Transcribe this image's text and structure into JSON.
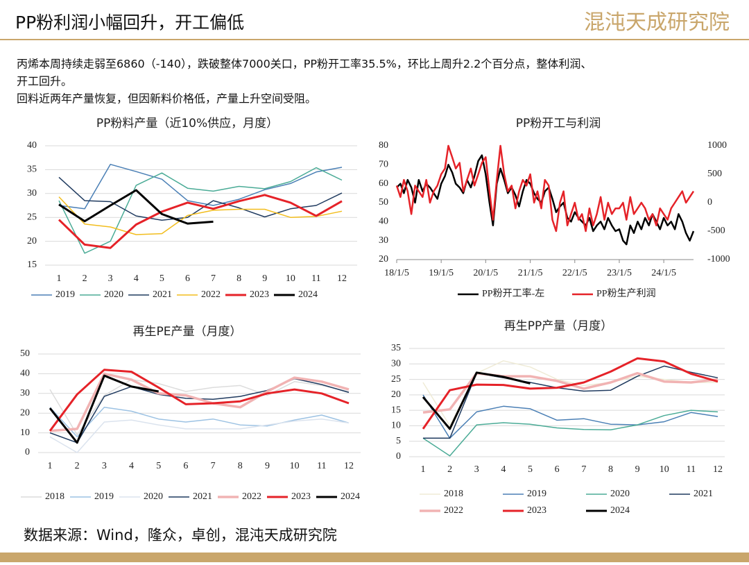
{
  "header": {
    "title": "PP粉利润小幅回升，开工偏低",
    "logo": "混沌天成研究院"
  },
  "text": {
    "lines": [
      "丙烯本周持续走弱至6860（-140），跌破整体7000关口，PP粉开工率35.5%，环比上周升2.2个百分点，整体利润、",
      "开工回升。",
      "回料近两年产量恢复，但因新料价格低，产量上升空间受阻。"
    ]
  },
  "source": "数据来源：Wind，隆众，卓创，混沌天成研究院",
  "chart_data": [
    {
      "type": "line",
      "title": "PP粉料产量（近10%供应，月度）",
      "categories": [
        "1",
        "2",
        "3",
        "4",
        "5",
        "6",
        "7",
        "8",
        "9",
        "10",
        "11",
        "12"
      ],
      "ylim": [
        15,
        40
      ],
      "yticks": [
        15,
        20,
        25,
        30,
        35,
        40
      ],
      "grid": true,
      "legend": "bottom",
      "series": [
        {
          "name": "2019",
          "color": "#4a7fb5",
          "width": 1.5,
          "values": [
            27.5,
            26.8,
            36.1,
            34.6,
            33.0,
            28.5,
            27.5,
            28.8,
            30.8,
            32.1,
            34.5,
            35.5
          ]
        },
        {
          "name": "2020",
          "color": "#4aab96",
          "width": 1.5,
          "values": [
            28.5,
            17.5,
            20.0,
            31.7,
            34.3,
            31.1,
            30.5,
            31.5,
            31.0,
            32.5,
            35.4,
            32.8
          ]
        },
        {
          "name": "2021",
          "color": "#1f3a5f",
          "width": 1.5,
          "values": [
            33.4,
            28.5,
            28.3,
            25.3,
            24.4,
            25.0,
            28.5,
            27.0,
            25.1,
            26.8,
            27.5,
            30.1
          ]
        },
        {
          "name": "2022",
          "color": "#f2bd1d",
          "width": 1.5,
          "values": [
            29.3,
            23.6,
            23.0,
            21.4,
            21.6,
            25.4,
            26.5,
            26.7,
            26.7,
            25.0,
            25.2,
            26.3
          ]
        },
        {
          "name": "2023",
          "color": "#e52228",
          "width": 3,
          "values": [
            24.5,
            19.3,
            18.6,
            23.5,
            26.2,
            28.1,
            26.8,
            28.4,
            29.7,
            28.1,
            25.3,
            28.4
          ]
        },
        {
          "name": "2024",
          "color": "#000000",
          "width": 3,
          "values": [
            27.7,
            24.2,
            27.5,
            30.7,
            25.7,
            23.7,
            24.1,
            null,
            null,
            null,
            null,
            null
          ]
        }
      ]
    },
    {
      "type": "dateline",
      "title": "PP粉开工与利润",
      "x": [
        "18/1/5",
        "18/2/5",
        "18/3/5",
        "18/4/5",
        "18/5/5",
        "18/6/5",
        "18/7/5",
        "18/8/5",
        "18/9/5",
        "18/10/5",
        "18/11/5",
        "18/12/5",
        "19/1/5",
        "19/2/5",
        "19/3/5",
        "19/4/5",
        "19/5/5",
        "19/6/5",
        "19/7/5",
        "19/8/5",
        "19/9/5",
        "19/10/5",
        "19/11/5",
        "19/12/5",
        "20/1/5",
        "20/2/5",
        "20/3/5",
        "20/4/5",
        "20/5/5",
        "20/6/5",
        "20/7/5",
        "20/8/5",
        "20/9/5",
        "20/10/5",
        "20/11/5",
        "20/12/5",
        "21/1/5",
        "21/2/5",
        "21/3/5",
        "21/4/5",
        "21/5/5",
        "21/6/5",
        "21/7/5",
        "21/8/5",
        "21/9/5",
        "21/10/5",
        "21/11/5",
        "21/12/5",
        "22/1/5",
        "22/2/5",
        "22/3/5",
        "22/4/5",
        "22/5/5",
        "22/6/5",
        "22/7/5",
        "22/8/5",
        "22/9/5",
        "22/10/5",
        "22/11/5",
        "22/12/5",
        "23/1/5",
        "23/2/5",
        "23/3/5",
        "23/4/5",
        "23/5/5",
        "23/6/5",
        "23/7/5",
        "23/8/5",
        "23/9/5",
        "23/10/5",
        "23/11/5",
        "23/12/5",
        "24/1/5",
        "24/2/5",
        "24/3/5",
        "24/4/5",
        "24/5/5",
        "24/6/5",
        "24/7/5",
        "24/8/5",
        "24/9/5"
      ],
      "xlim": [
        "18/1/5",
        "24/9/5"
      ],
      "xticks": [
        "18/1/5",
        "19/1/5",
        "20/1/5",
        "21/1/5",
        "22/1/5",
        "23/1/5",
        "24/1/5"
      ],
      "ylim": [
        20,
        80
      ],
      "yticks": [
        20,
        30,
        40,
        50,
        60,
        70,
        80
      ],
      "y2lim": [
        -1000,
        1000
      ],
      "y2ticks": [
        -1000,
        -500,
        0,
        500,
        1000
      ],
      "grid": false,
      "legend": "bottom",
      "series": [
        {
          "name": "PP粉开工率-左",
          "color": "#000000",
          "width": 2.5,
          "values": [
            58,
            60,
            55,
            62,
            58,
            50,
            62,
            56,
            60,
            58,
            55,
            52,
            60,
            64,
            70,
            66,
            60,
            58,
            55,
            62,
            58,
            64,
            72,
            75,
            65,
            50,
            38,
            60,
            68,
            62,
            55,
            58,
            54,
            48,
            56,
            62,
            60,
            55,
            52,
            50,
            56,
            58,
            52,
            45,
            48,
            50,
            42,
            40,
            45,
            42,
            40,
            38,
            42,
            35,
            38,
            40,
            36,
            42,
            38,
            35,
            36,
            30,
            28,
            38,
            34,
            40,
            36,
            42,
            38,
            44,
            40,
            36,
            42,
            38,
            40,
            36,
            44,
            40,
            34,
            30,
            35
          ]
        },
        {
          "name": "PP粉生产利润",
          "color": "#e52228",
          "width": 2.5,
          "axis": "y2",
          "values": [
            300,
            100,
            400,
            200,
            -200,
            300,
            200,
            100,
            400,
            0,
            200,
            300,
            500,
            600,
            1000,
            800,
            600,
            700,
            200,
            400,
            600,
            300,
            500,
            700,
            800,
            200,
            -300,
            400,
            1000,
            500,
            200,
            300,
            -100,
            200,
            400,
            300,
            500,
            0,
            200,
            -100,
            400,
            300,
            -300,
            -500,
            0,
            200,
            -400,
            -200,
            0,
            -300,
            -200,
            -500,
            -100,
            -400,
            -200,
            100,
            -300,
            0,
            -200,
            -100,
            -100,
            0,
            -300,
            100,
            -200,
            -100,
            0,
            -100,
            -300,
            -200,
            -400,
            -100,
            -200,
            -300,
            -100,
            0,
            100,
            200,
            0,
            100,
            200
          ]
        }
      ]
    },
    {
      "type": "line",
      "title": "再生PE产量（月度）",
      "categories": [
        "1",
        "2",
        "3",
        "4",
        "5",
        "6",
        "7",
        "8",
        "9",
        "10",
        "11",
        "12"
      ],
      "ylim": [
        0,
        50
      ],
      "yticks": [
        0,
        10,
        20,
        30,
        40,
        50
      ],
      "grid": true,
      "legend": "bottom",
      "series": [
        {
          "name": "2018",
          "color": "#dcdcdc",
          "width": 1.5,
          "values": [
            32,
            9,
            29,
            37,
            35,
            31,
            33,
            34,
            29,
            36,
            34,
            31
          ]
        },
        {
          "name": "2019",
          "color": "#9cc2e3",
          "width": 1.5,
          "values": [
            23,
            8,
            23,
            21,
            17,
            15.5,
            17,
            14,
            13.5,
            16.5,
            19,
            15
          ]
        },
        {
          "name": "2020",
          "color": "#dbe3ee",
          "width": 1.5,
          "values": [
            8,
            0,
            15.5,
            16.5,
            14,
            12,
            12,
            12,
            14,
            16,
            17,
            15
          ]
        },
        {
          "name": "2021",
          "color": "#1f3a5f",
          "width": 1.5,
          "values": [
            10,
            5,
            28.5,
            33.5,
            29.5,
            27.5,
            27,
            28.5,
            31.5,
            37.5,
            34.5,
            30.5
          ]
        },
        {
          "name": "2022",
          "color": "#f1b3b3",
          "width": 3.5,
          "values": [
            11,
            12,
            40,
            37,
            30,
            29,
            25,
            23,
            31,
            38,
            36,
            32
          ]
        },
        {
          "name": "2023",
          "color": "#e52228",
          "width": 3,
          "values": [
            11,
            29.5,
            42,
            41,
            33,
            24.5,
            25,
            26,
            30,
            32,
            30,
            25
          ]
        },
        {
          "name": "2024",
          "color": "#000000",
          "width": 3,
          "values": [
            22.5,
            5,
            39,
            33.5,
            31,
            null,
            null,
            null,
            null,
            null,
            null,
            null
          ]
        }
      ]
    },
    {
      "type": "line",
      "title": "再生PP产量（月度）",
      "categories": [
        "1",
        "2",
        "3",
        "4",
        "5",
        "6",
        "7",
        "8",
        "9",
        "10",
        "11",
        "12"
      ],
      "ylim": [
        0,
        35
      ],
      "yticks": [
        0,
        5,
        10,
        15,
        20,
        25,
        30,
        35
      ],
      "grid": true,
      "legend": "bottom",
      "series": [
        {
          "name": "2018",
          "color": "#efebd6",
          "width": 1.5,
          "values": [
            24,
            10,
            27,
            31,
            29,
            25,
            23,
            24,
            26,
            25,
            24,
            24
          ]
        },
        {
          "name": "2019",
          "color": "#4a7fb5",
          "width": 1.5,
          "values": [
            20,
            6,
            14.5,
            16.3,
            15.5,
            11.8,
            12.3,
            10.5,
            10.3,
            11.3,
            14.3,
            13
          ]
        },
        {
          "name": "2020",
          "color": "#4aab96",
          "width": 1.5,
          "values": [
            6,
            0.3,
            10.3,
            11,
            10.5,
            9.3,
            8.8,
            8.7,
            10.3,
            13.3,
            15,
            14.5
          ]
        },
        {
          "name": "2021",
          "color": "#1f3a5f",
          "width": 1.5,
          "values": [
            6,
            6,
            27,
            25.5,
            24,
            22.3,
            21.2,
            21.5,
            26,
            29.3,
            27.3,
            25.5
          ]
        },
        {
          "name": "2022",
          "color": "#f1b3b3",
          "width": 3.5,
          "values": [
            14.3,
            15.3,
            27,
            26,
            26,
            24.5,
            22,
            24,
            27,
            24.3,
            24,
            25
          ]
        },
        {
          "name": "2023",
          "color": "#e52228",
          "width": 3,
          "values": [
            9,
            21.5,
            23.3,
            23.2,
            22,
            22.3,
            24,
            27.5,
            31.8,
            30.8,
            26.8,
            24.3
          ]
        },
        {
          "name": "2024",
          "color": "#000000",
          "width": 3,
          "values": [
            19.3,
            9,
            27.2,
            25.8,
            23.7,
            null,
            null,
            null,
            null,
            null,
            null,
            null
          ]
        }
      ]
    }
  ]
}
